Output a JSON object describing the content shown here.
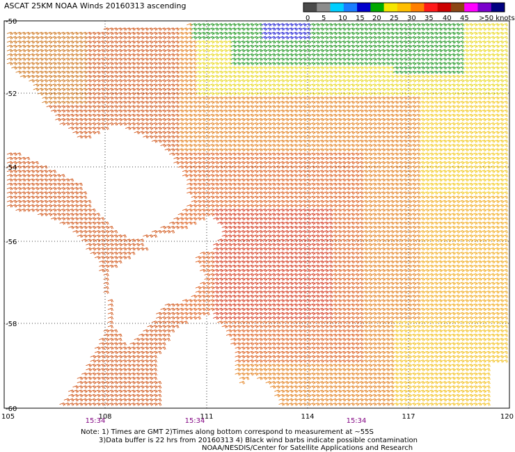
{
  "title": "ASCAT 25KM NOAA Winds 20160313 ascending",
  "legend": {
    "labels": [
      "0",
      "5",
      "10",
      "15",
      "20",
      "25",
      "30",
      "35",
      "40",
      "45",
      ">50 knots"
    ],
    "colors": [
      "#4a4a4a",
      "#8c8c8c",
      "#00cfff",
      "#1a7dff",
      "#0000cc",
      "#00aa00",
      "#f5e600",
      "#ffbf00",
      "#ff7f00",
      "#ff1a1a",
      "#cc0000",
      "#8b4513",
      "#ff00ff",
      "#7a00cc",
      "#000080"
    ]
  },
  "axes": {
    "x_ticks": [
      "105",
      "108",
      "111",
      "114",
      "117",
      "120"
    ],
    "y_ticks": [
      "-50",
      "-52",
      "-54",
      "-56",
      "-58",
      "-60"
    ]
  },
  "times": [
    "15:34",
    "15:34",
    "15:34"
  ],
  "notes": {
    "line1": "Note: 1) Times are GMT 2)Times along bottom correspond to measurement at ~55S",
    "line2": "3)Data buffer is 22 hrs from 20160313 4) Black wind barbs indicate possible contamination",
    "line3": "NOAA/NESDIS/Center for Satellite Applications and Research"
  }
}
